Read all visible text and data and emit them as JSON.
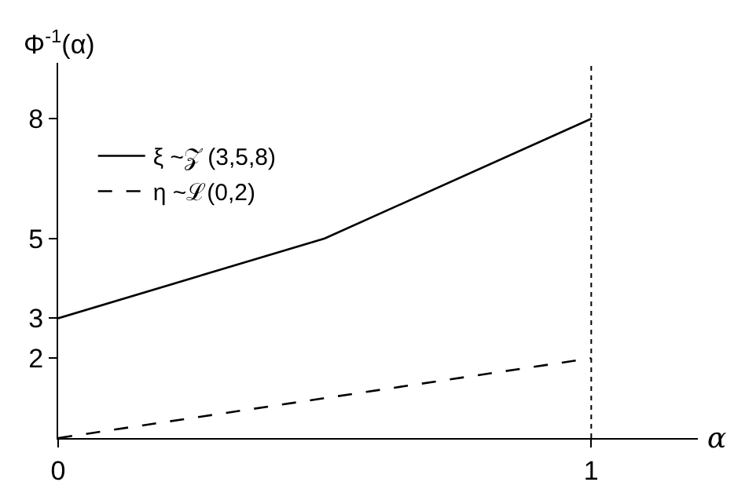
{
  "chart_data": {
    "type": "line",
    "xlabel": "α",
    "ylabel": "Φ$^{-1}$(α)",
    "xlim": [
      0,
      1.2
    ],
    "ylim": [
      0,
      9.4
    ],
    "xticks": [
      0,
      1
    ],
    "yticks": [
      2,
      3,
      5,
      8
    ],
    "series": [
      {
        "name": "ξ ~𝒵 (3,5,8)",
        "color": "#000000",
        "x": [
          0,
          0.5,
          1
        ],
        "values": [
          3,
          5,
          8
        ],
        "line_style": "solid"
      },
      {
        "name": "η ~ℒ(0,2)",
        "color": "#000000",
        "x": [
          0,
          1
        ],
        "values": [
          0,
          2
        ],
        "line_style": "dashed"
      }
    ],
    "ref_lines": [
      {
        "axis": "x",
        "value": 1,
        "label": null,
        "line_style": "dotted",
        "color": "#000000"
      }
    ],
    "legend": "top left",
    "marker": "none"
  }
}
